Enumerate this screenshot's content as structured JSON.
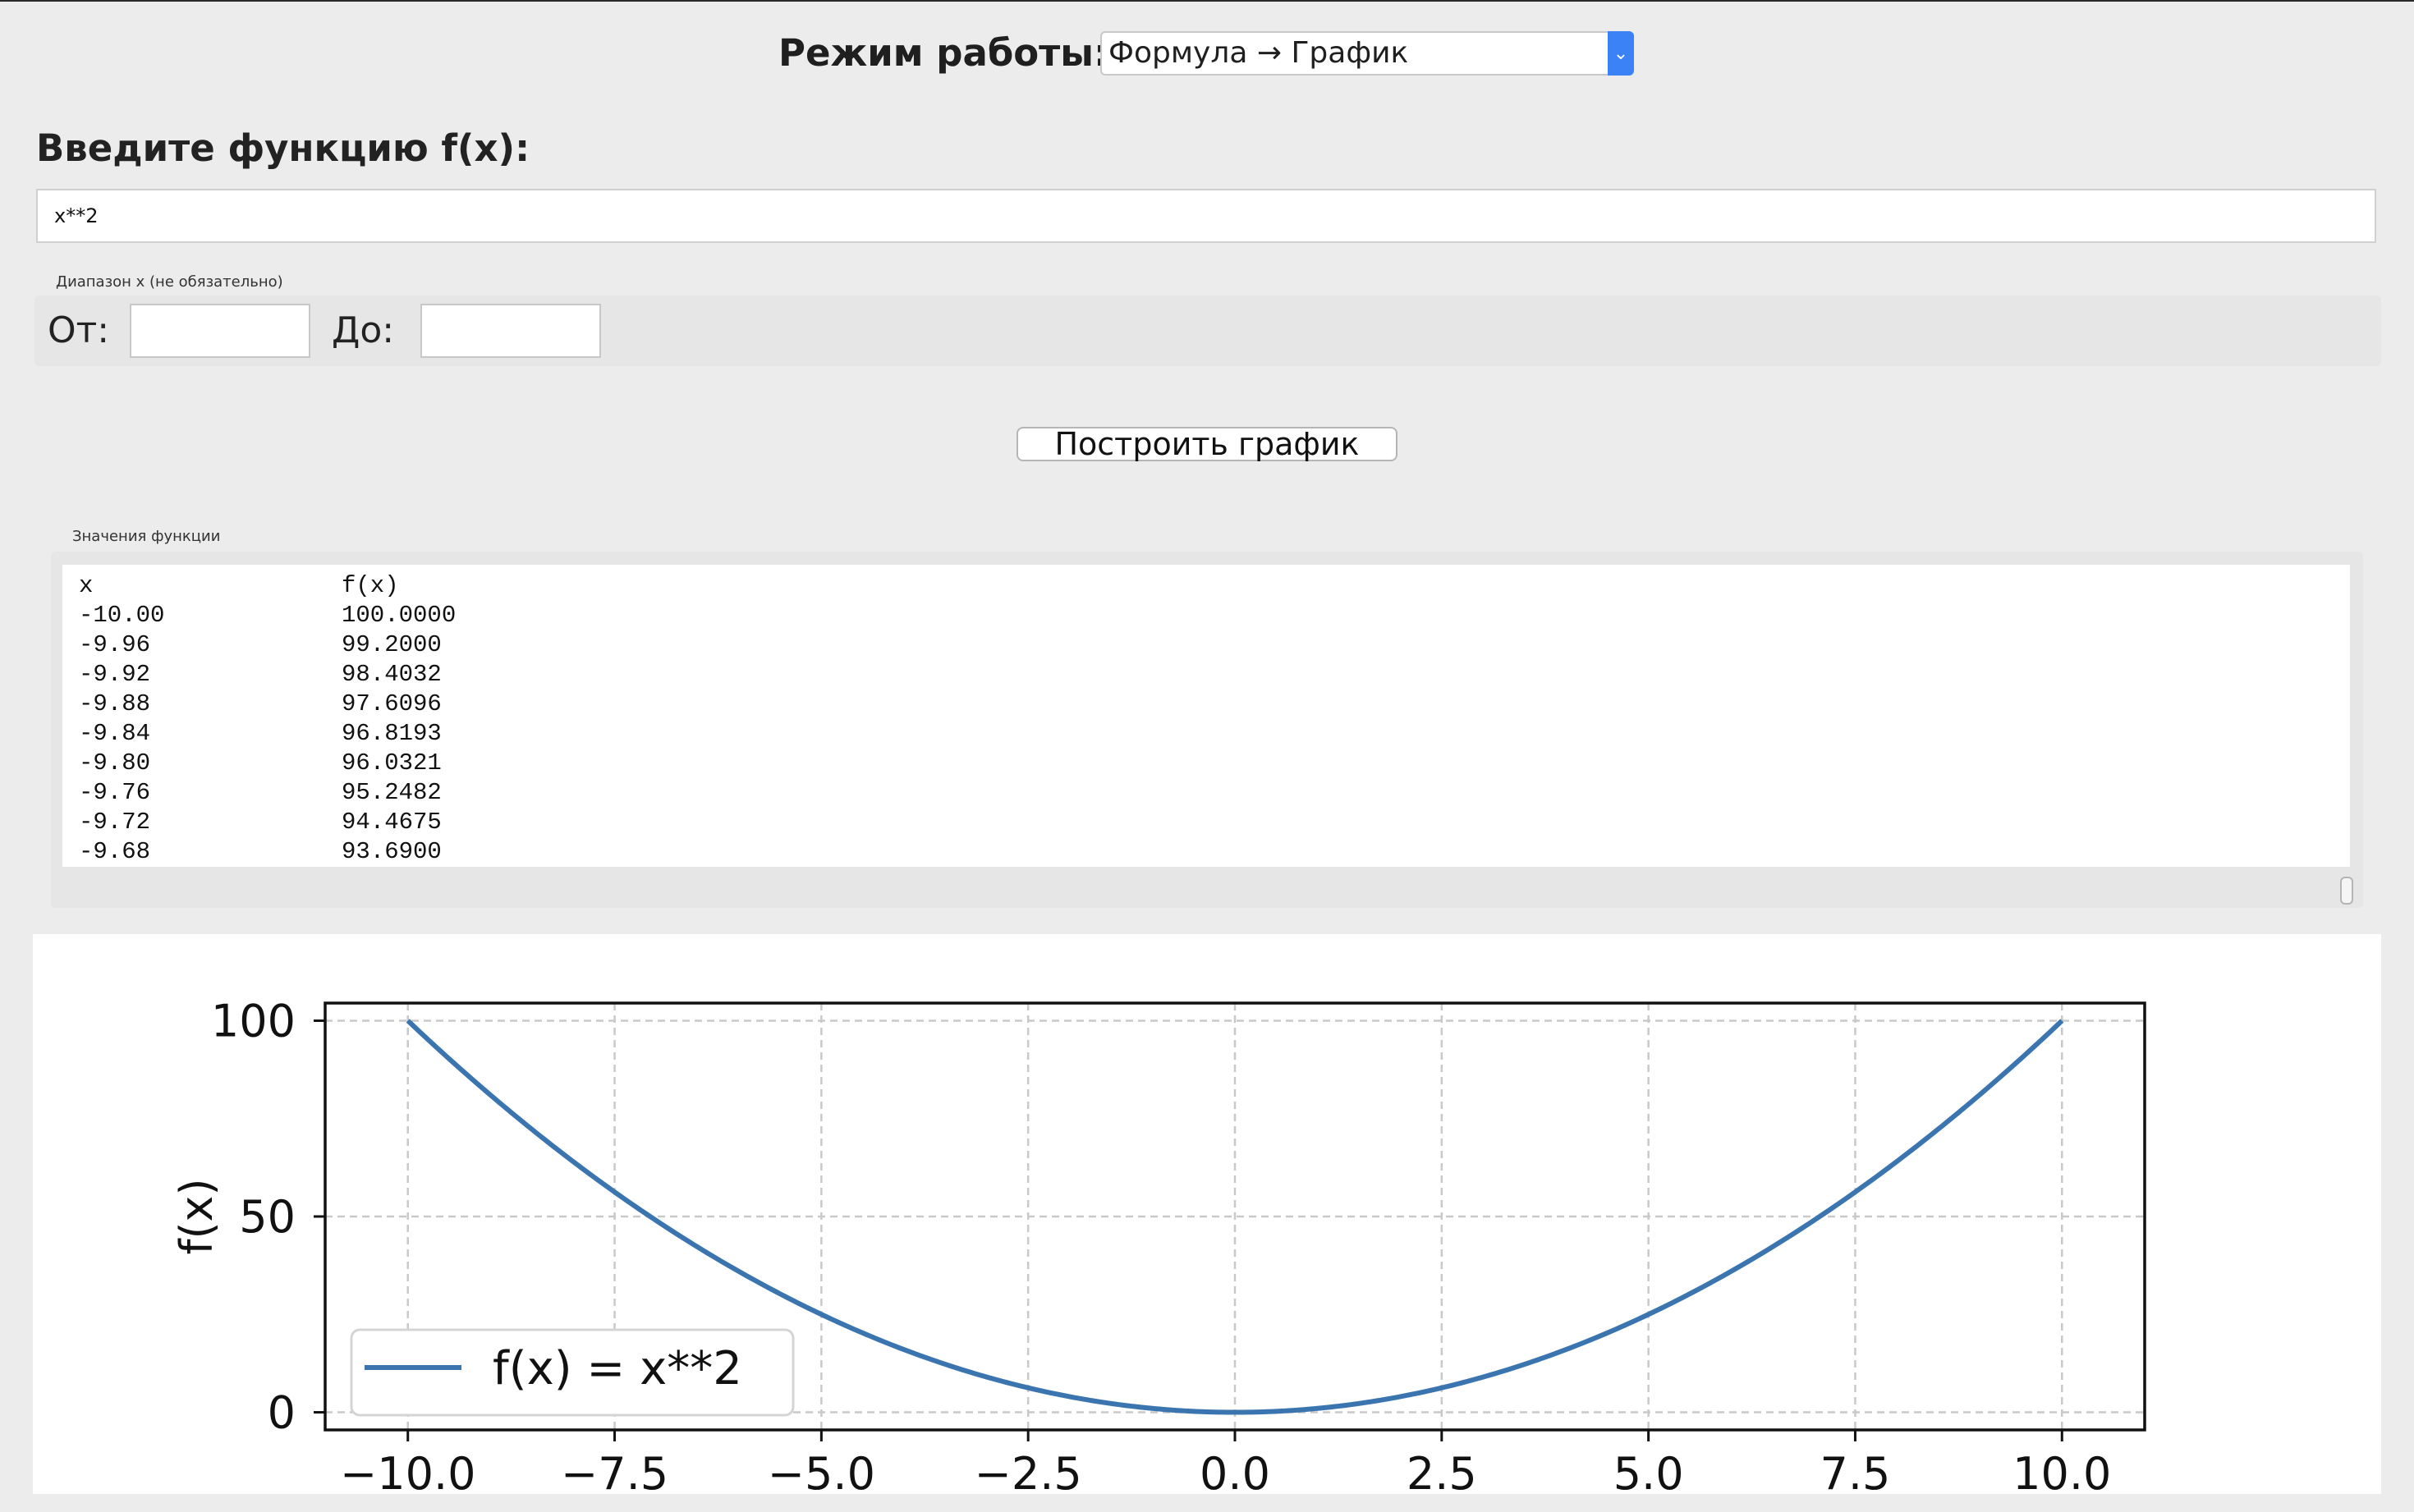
{
  "mode": {
    "label": "Режим работы:",
    "selected": "Формула → График"
  },
  "function_section": {
    "heading": "Введите функцию f(x):",
    "value": "x**2"
  },
  "range": {
    "legend": "Диапазон x (не обязательно)",
    "from_label": "От:",
    "to_label": "До:",
    "from_value": "",
    "to_value": ""
  },
  "build_button": {
    "label": "Построить график"
  },
  "values_table": {
    "legend": "Значения функции",
    "headers": [
      "x",
      "f(x)"
    ],
    "rows": [
      [
        "-10.00",
        "100.0000"
      ],
      [
        "-9.96",
        "99.2000"
      ],
      [
        "-9.92",
        "98.4032"
      ],
      [
        "-9.88",
        "97.6096"
      ],
      [
        "-9.84",
        "96.8193"
      ],
      [
        "-9.80",
        "96.0321"
      ],
      [
        "-9.76",
        "95.2482"
      ],
      [
        "-9.72",
        "94.4675"
      ],
      [
        "-9.68",
        "93.6900"
      ]
    ]
  },
  "chart_data": {
    "type": "line",
    "title": "",
    "xlabel": "",
    "ylabel": "f(x)",
    "xlim": [
      -11,
      11
    ],
    "ylim": [
      -4.5,
      104.5
    ],
    "x_ticks": [
      -10.0,
      -7.5,
      -5.0,
      -2.5,
      0.0,
      2.5,
      5.0,
      7.5,
      10.0
    ],
    "x_tick_labels": [
      "−10.0",
      "−7.5",
      "−5.0",
      "−2.5",
      "0.0",
      "2.5",
      "5.0",
      "7.5",
      "10.0"
    ],
    "y_ticks": [
      0,
      50,
      100
    ],
    "y_tick_labels": [
      "0",
      "50",
      "100"
    ],
    "grid": true,
    "legend_position": "lower-left",
    "series": [
      {
        "name": "f(x) = x**2",
        "color": "#3b75af",
        "x_range": [
          -10,
          10
        ],
        "function": "x**2"
      }
    ]
  }
}
